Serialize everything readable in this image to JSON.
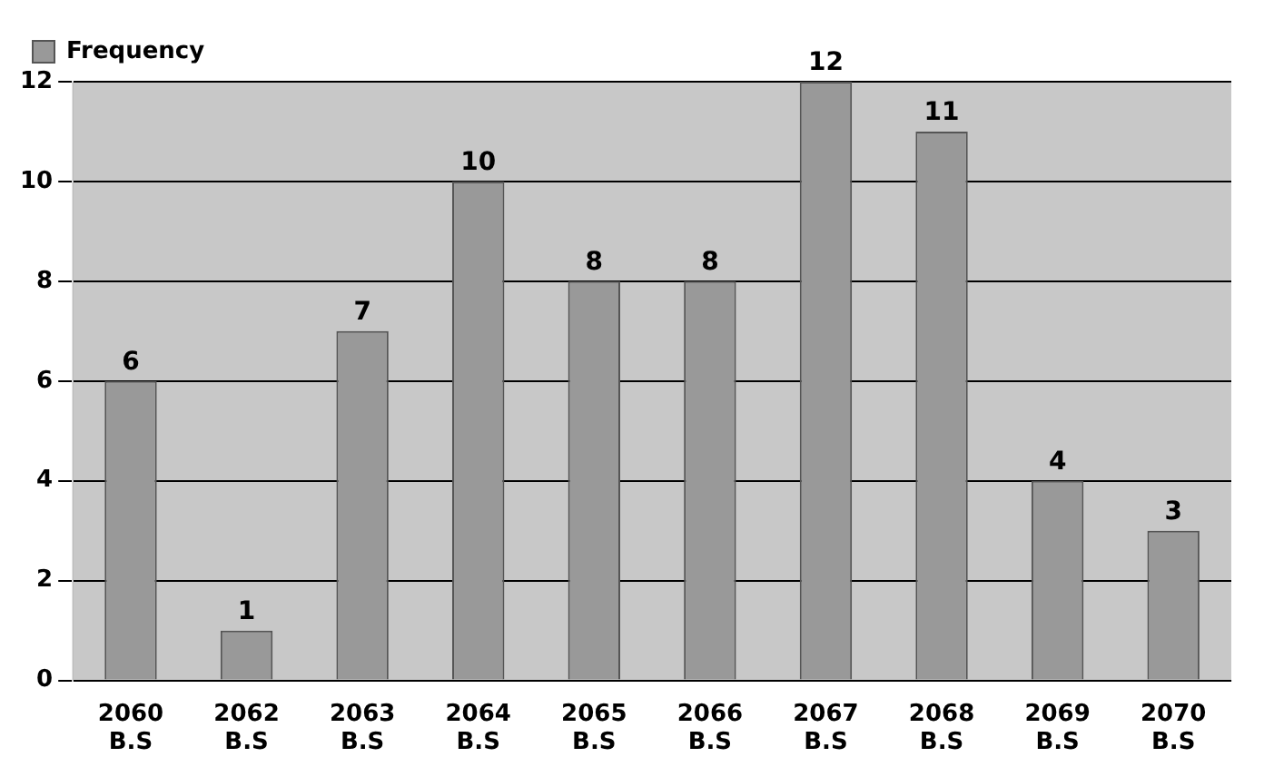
{
  "chart_data": {
    "type": "bar",
    "categories": [
      "2060 B.S",
      "2062 B.S",
      "2063 B.S",
      "2064 B.S",
      "2065 B.S",
      "2066 B.S",
      "2067 B.S",
      "2068 B.S",
      "2069 B.S",
      "2070 B.S"
    ],
    "series": [
      {
        "name": "Frequency",
        "color": "#999999",
        "values": [
          6,
          1,
          7,
          10,
          8,
          8,
          12,
          11,
          4,
          3
        ]
      }
    ],
    "ylim": [
      0,
      12
    ],
    "yticks": [
      0,
      2,
      4,
      6,
      8,
      10,
      12
    ],
    "grid": "y",
    "legend": "top left",
    "data_labels": true
  }
}
